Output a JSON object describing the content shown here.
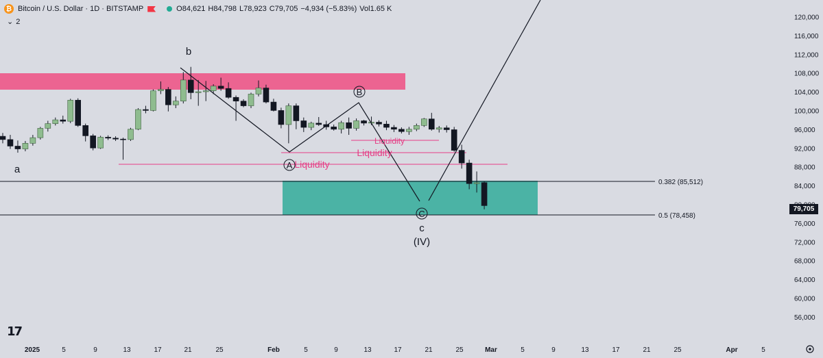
{
  "header": {
    "symbol": "Bitcoin / U.S. Dollar · 1D · BITSTAMP",
    "open": "O84,621",
    "high": "H84,798",
    "low": "L78,923",
    "close": "C79,705",
    "change": "−4,934 (−5.83%)",
    "volume": "Vol1.65 K",
    "indicator_count": "2",
    "coin_icon": "bitcoin-icon",
    "flag_icon": "flag-icon",
    "status_icon": "market-open-dot-icon"
  },
  "colors": {
    "background": "#d9dbe2",
    "up_candle": "#8fbc8f",
    "down_candle": "#131722",
    "resistance_zone": "#ee5a8a",
    "support_zone": "#3fb0a0",
    "liquidity": "#e63d85",
    "last_price_tag": "#131722"
  },
  "price_axis": {
    "labels": [
      "120,000",
      "116,000",
      "112,000",
      "108,000",
      "104,000",
      "100,000",
      "96,000",
      "92,000",
      "88,000",
      "84,000",
      "80,000",
      "76,000",
      "72,000",
      "68,000",
      "64,000",
      "60,000",
      "56,000"
    ],
    "last_price": "79,705"
  },
  "time_axis": {
    "labels": [
      "2025",
      "5",
      "9",
      "13",
      "17",
      "21",
      "25",
      "Feb",
      "5",
      "9",
      "13",
      "17",
      "21",
      "25",
      "Mar",
      "5",
      "9",
      "13",
      "17",
      "21",
      "25",
      "Apr",
      "5"
    ],
    "settings_icon": "gear-icon"
  },
  "annotations": {
    "wave_a": "a",
    "wave_b": "b",
    "wave_c": "c",
    "wave_iv": "(IV)",
    "circle_A": "A",
    "circle_B": "B",
    "circle_C": "C",
    "liquidity_1": "Liquidity",
    "liquidity_2": "Liquidity",
    "liquidity_3": "Liquidity",
    "fib_382": "0.382 (85,512)",
    "fib_05": "0.5 (78,458)"
  },
  "chart_data": {
    "type": "candlestick",
    "symbol": "Bitcoin / U.S. Dollar",
    "interval": "1D",
    "exchange": "BITSTAMP",
    "ylim": [
      54000,
      122000
    ],
    "price_scale": "linear",
    "candles": [
      {
        "o": 94500,
        "h": 95200,
        "l": 93000,
        "c": 93800
      },
      {
        "o": 93800,
        "h": 94800,
        "l": 91800,
        "c": 92400
      },
      {
        "o": 92400,
        "h": 93600,
        "l": 91000,
        "c": 91800
      },
      {
        "o": 91800,
        "h": 93500,
        "l": 91300,
        "c": 93000
      },
      {
        "o": 93000,
        "h": 94800,
        "l": 92500,
        "c": 94200
      },
      {
        "o": 94200,
        "h": 96500,
        "l": 93800,
        "c": 96200
      },
      {
        "o": 96200,
        "h": 97800,
        "l": 95500,
        "c": 97200
      },
      {
        "o": 97200,
        "h": 98500,
        "l": 96800,
        "c": 98000
      },
      {
        "o": 98000,
        "h": 98900,
        "l": 97200,
        "c": 97700
      },
      {
        "o": 97700,
        "h": 102500,
        "l": 97300,
        "c": 102200
      },
      {
        "o": 102200,
        "h": 102600,
        "l": 96500,
        "c": 96800
      },
      {
        "o": 96800,
        "h": 97200,
        "l": 93400,
        "c": 94600
      },
      {
        "o": 94600,
        "h": 95000,
        "l": 91500,
        "c": 92000
      },
      {
        "o": 92000,
        "h": 94600,
        "l": 91800,
        "c": 94300
      },
      {
        "o": 94300,
        "h": 94700,
        "l": 93700,
        "c": 94100
      },
      {
        "o": 94100,
        "h": 94500,
        "l": 93500,
        "c": 93900
      },
      {
        "o": 93900,
        "h": 94200,
        "l": 89500,
        "c": 93800
      },
      {
        "o": 93800,
        "h": 96300,
        "l": 93500,
        "c": 96000
      },
      {
        "o": 96000,
        "h": 100500,
        "l": 95800,
        "c": 100200
      },
      {
        "o": 100200,
        "h": 101000,
        "l": 99400,
        "c": 100000
      },
      {
        "o": 100000,
        "h": 104500,
        "l": 99800,
        "c": 104200
      },
      {
        "o": 104200,
        "h": 106200,
        "l": 103500,
        "c": 104500
      },
      {
        "o": 104500,
        "h": 105000,
        "l": 99800,
        "c": 101200
      },
      {
        "o": 101200,
        "h": 103000,
        "l": 100500,
        "c": 102000
      },
      {
        "o": 102000,
        "h": 108200,
        "l": 101500,
        "c": 106500
      },
      {
        "o": 106500,
        "h": 109300,
        "l": 102400,
        "c": 103800
      },
      {
        "o": 103800,
        "h": 106500,
        "l": 101000,
        "c": 104000
      },
      {
        "o": 104000,
        "h": 106300,
        "l": 102000,
        "c": 104200
      },
      {
        "o": 104200,
        "h": 105600,
        "l": 103500,
        "c": 105200
      },
      {
        "o": 105200,
        "h": 107000,
        "l": 104200,
        "c": 104700
      },
      {
        "o": 104700,
        "h": 106000,
        "l": 102500,
        "c": 102800
      },
      {
        "o": 102800,
        "h": 103200,
        "l": 97800,
        "c": 102000
      },
      {
        "o": 102000,
        "h": 102400,
        "l": 100700,
        "c": 101000
      },
      {
        "o": 101000,
        "h": 103800,
        "l": 100500,
        "c": 103500
      },
      {
        "o": 103500,
        "h": 106400,
        "l": 103000,
        "c": 104800
      },
      {
        "o": 104800,
        "h": 105500,
        "l": 101500,
        "c": 101800
      },
      {
        "o": 101800,
        "h": 102500,
        "l": 99800,
        "c": 100000
      },
      {
        "o": 100000,
        "h": 100600,
        "l": 96200,
        "c": 97000
      },
      {
        "o": 97000,
        "h": 101500,
        "l": 93000,
        "c": 101000
      },
      {
        "o": 101000,
        "h": 101500,
        "l": 96000,
        "c": 97800
      },
      {
        "o": 97800,
        "h": 98500,
        "l": 95400,
        "c": 96400
      },
      {
        "o": 96400,
        "h": 97600,
        "l": 95800,
        "c": 97300
      },
      {
        "o": 97300,
        "h": 98600,
        "l": 96700,
        "c": 97000
      },
      {
        "o": 97000,
        "h": 97800,
        "l": 95900,
        "c": 96500
      },
      {
        "o": 96500,
        "h": 97000,
        "l": 95700,
        "c": 96000
      },
      {
        "o": 96000,
        "h": 97800,
        "l": 95100,
        "c": 97400
      },
      {
        "o": 97400,
        "h": 98500,
        "l": 94800,
        "c": 96200
      },
      {
        "o": 96200,
        "h": 98300,
        "l": 95700,
        "c": 97800
      },
      {
        "o": 97800,
        "h": 98000,
        "l": 96800,
        "c": 97300
      },
      {
        "o": 97300,
        "h": 98700,
        "l": 96900,
        "c": 97500
      },
      {
        "o": 97500,
        "h": 97900,
        "l": 96600,
        "c": 97100
      },
      {
        "o": 97100,
        "h": 97800,
        "l": 95800,
        "c": 96400
      },
      {
        "o": 96400,
        "h": 96900,
        "l": 95400,
        "c": 96000
      },
      {
        "o": 96000,
        "h": 96400,
        "l": 95100,
        "c": 95500
      },
      {
        "o": 95500,
        "h": 96500,
        "l": 94800,
        "c": 96000
      },
      {
        "o": 96000,
        "h": 97200,
        "l": 95600,
        "c": 96800
      },
      {
        "o": 96800,
        "h": 98400,
        "l": 96500,
        "c": 98200
      },
      {
        "o": 98200,
        "h": 99500,
        "l": 95700,
        "c": 96000
      },
      {
        "o": 96000,
        "h": 96700,
        "l": 95300,
        "c": 96300
      },
      {
        "o": 96300,
        "h": 96800,
        "l": 95300,
        "c": 95900
      },
      {
        "o": 95900,
        "h": 96500,
        "l": 91200,
        "c": 91500
      },
      {
        "o": 91500,
        "h": 92700,
        "l": 87600,
        "c": 88800
      },
      {
        "o": 88800,
        "h": 89500,
        "l": 83200,
        "c": 84400
      },
      {
        "o": 84400,
        "h": 87000,
        "l": 82500,
        "c": 84600
      },
      {
        "o": 84621,
        "h": 84798,
        "l": 78923,
        "c": 79705
      }
    ],
    "zones": [
      {
        "label": "resistance",
        "from": 105000,
        "to": 108200
      },
      {
        "label": "support",
        "from": 78458,
        "to": 85512
      }
    ],
    "fib_levels": [
      {
        "label": "0.382 (85,512)",
        "value": 85512
      },
      {
        "label": "0.5 (78,458)",
        "value": 78458
      }
    ],
    "liquidity_levels": [
      89200,
      91400,
      93900
    ],
    "wave_path": [
      109700,
      91400,
      101800,
      80500
    ]
  }
}
